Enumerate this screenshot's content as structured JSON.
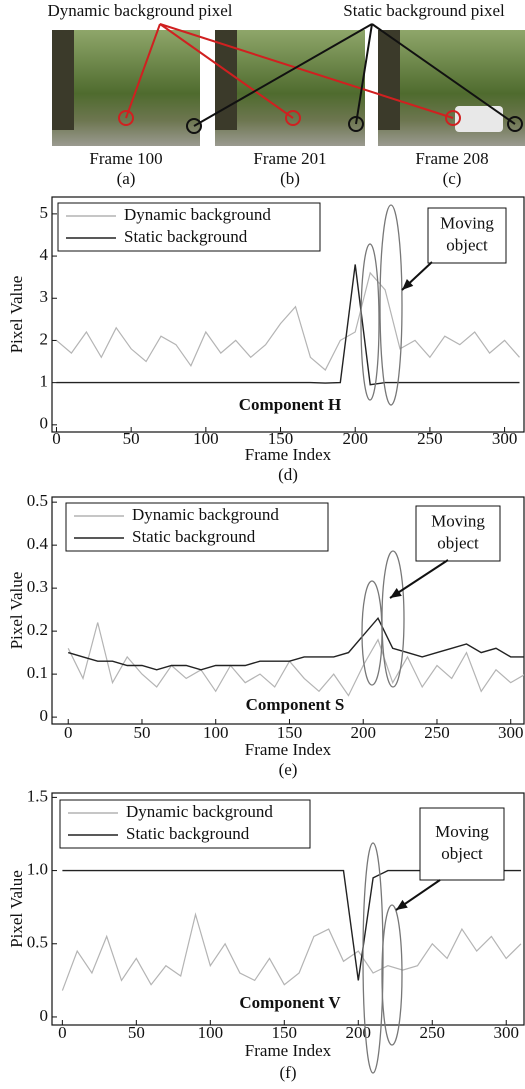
{
  "photos": {
    "dynamic_label": "Dynamic background pixel",
    "static_label": "Static background pixel",
    "frames": [
      {
        "label": "Frame 100",
        "caption": "(a)"
      },
      {
        "label": "Frame 201",
        "caption": "(b)"
      },
      {
        "label": "Frame 208",
        "caption": "(c)"
      }
    ]
  },
  "chart_data": [
    {
      "type": "line",
      "xlabel": "Frame Index",
      "ylabel": "Pixel Value",
      "caption": "(d)",
      "label": "Component H",
      "annotation": [
        "Moving",
        "object"
      ],
      "legend": "upper left",
      "x": [
        0,
        10,
        20,
        30,
        40,
        50,
        60,
        70,
        80,
        90,
        100,
        110,
        120,
        130,
        140,
        150,
        160,
        170,
        180,
        190,
        200,
        210,
        220,
        230,
        240,
        250,
        260,
        270,
        280,
        290,
        300,
        310
      ],
      "series": [
        {
          "name": "Dynamic background",
          "color": "#b4b4b4",
          "values": [
            2.0,
            1.7,
            2.2,
            1.6,
            2.3,
            1.8,
            1.5,
            2.1,
            1.9,
            1.4,
            2.2,
            1.7,
            2.0,
            1.6,
            1.9,
            2.4,
            2.8,
            1.6,
            1.3,
            2.0,
            2.2,
            3.6,
            3.2,
            1.8,
            2.0,
            1.6,
            2.1,
            1.9,
            2.2,
            1.7,
            2.0,
            1.6
          ]
        },
        {
          "name": "Static background",
          "color": "#222222",
          "values": [
            1.0,
            1.0,
            1.0,
            1.0,
            1.0,
            1.0,
            1.0,
            1.0,
            1.0,
            1.0,
            1.0,
            1.0,
            1.0,
            1.0,
            1.0,
            1.0,
            1.0,
            1.0,
            0.99,
            1.0,
            3.8,
            0.95,
            1.0,
            1.0,
            1.0,
            1.0,
            1.0,
            1.0,
            1.0,
            1.0,
            1.0,
            1.0
          ]
        }
      ],
      "xlim": [
        -3,
        313
      ],
      "xticks": [
        0,
        50,
        100,
        150,
        200,
        250,
        300
      ],
      "ylim": [
        -0.17,
        5.4
      ],
      "yticks": [
        0,
        1,
        2,
        3,
        4,
        5
      ]
    },
    {
      "type": "line",
      "xlabel": "Frame Index",
      "ylabel": "Pixel Value",
      "caption": "(e)",
      "label": "Component S",
      "annotation": [
        "Moving",
        "object"
      ],
      "legend": "upper left",
      "x": [
        0,
        10,
        20,
        30,
        40,
        50,
        60,
        70,
        80,
        90,
        100,
        110,
        120,
        130,
        140,
        150,
        160,
        170,
        180,
        190,
        200,
        210,
        220,
        230,
        240,
        250,
        260,
        270,
        280,
        290,
        300,
        310
      ],
      "series": [
        {
          "name": "Dynamic background",
          "color": "#b4b4b4",
          "values": [
            0.16,
            0.09,
            0.22,
            0.08,
            0.14,
            0.1,
            0.07,
            0.12,
            0.09,
            0.11,
            0.06,
            0.12,
            0.08,
            0.1,
            0.07,
            0.13,
            0.09,
            0.06,
            0.1,
            0.05,
            0.12,
            0.18,
            0.08,
            0.14,
            0.07,
            0.12,
            0.09,
            0.15,
            0.06,
            0.11,
            0.08,
            0.1
          ]
        },
        {
          "name": "Static background",
          "color": "#222222",
          "values": [
            0.15,
            0.14,
            0.13,
            0.13,
            0.12,
            0.12,
            0.11,
            0.12,
            0.12,
            0.11,
            0.12,
            0.12,
            0.12,
            0.13,
            0.13,
            0.13,
            0.14,
            0.14,
            0.14,
            0.15,
            0.19,
            0.23,
            0.16,
            0.15,
            0.14,
            0.15,
            0.16,
            0.17,
            0.15,
            0.16,
            0.14,
            0.14
          ]
        }
      ],
      "xlim": [
        -11,
        309
      ],
      "xticks": [
        0,
        50,
        100,
        150,
        200,
        250,
        300
      ],
      "ylim": [
        -0.016,
        0.512
      ],
      "yticks": [
        0,
        0.1,
        0.2,
        0.3,
        0.4,
        0.5
      ]
    },
    {
      "type": "line",
      "xlabel": "Frame Index",
      "ylabel": "Pixel Value",
      "caption": "(f)",
      "label": "Component V",
      "annotation": [
        "Moving",
        "object"
      ],
      "legend": "upper left",
      "x": [
        0,
        10,
        20,
        30,
        40,
        50,
        60,
        70,
        80,
        90,
        100,
        110,
        120,
        130,
        140,
        150,
        160,
        170,
        180,
        190,
        200,
        210,
        220,
        230,
        240,
        250,
        260,
        270,
        280,
        290,
        300,
        310
      ],
      "series": [
        {
          "name": "Dynamic background",
          "color": "#b4b4b4",
          "values": [
            0.18,
            0.45,
            0.3,
            0.55,
            0.25,
            0.4,
            0.22,
            0.35,
            0.28,
            0.7,
            0.35,
            0.5,
            0.3,
            0.25,
            0.4,
            0.22,
            0.3,
            0.55,
            0.6,
            0.38,
            0.45,
            0.3,
            0.35,
            0.32,
            0.35,
            0.5,
            0.4,
            0.6,
            0.45,
            0.55,
            0.4,
            0.5
          ]
        },
        {
          "name": "Static background",
          "color": "#222222",
          "values": [
            1.0,
            1.0,
            1.0,
            1.0,
            1.0,
            1.0,
            1.0,
            1.0,
            1.0,
            1.0,
            1.0,
            1.0,
            1.0,
            1.0,
            1.0,
            1.0,
            1.0,
            1.0,
            1.0,
            1.0,
            0.25,
            0.95,
            1.0,
            1.0,
            1.0,
            1.0,
            1.0,
            1.0,
            1.0,
            1.0,
            1.0,
            1.0
          ]
        }
      ],
      "xlim": [
        -7,
        312
      ],
      "xticks": [
        0,
        50,
        100,
        150,
        200,
        250,
        300
      ],
      "ylim": [
        -0.055,
        1.53
      ],
      "yticks": [
        0,
        0.5,
        {
          "value": 1,
          "label": "1.0"
        },
        1.5
      ]
    }
  ]
}
